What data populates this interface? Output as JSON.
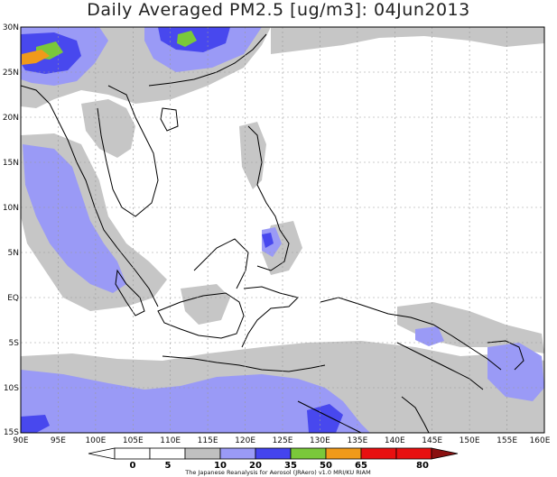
{
  "title": "Daily Averaged PM2.5 [ug/m3]: 04Jun2013",
  "credit": "The Japanese Reanalysis for Aerosol (JRAero) v1.0  MRI/KU RIAM",
  "map": {
    "lon_range": [
      "90E",
      "160E"
    ],
    "lat_range": [
      "15S",
      "30N"
    ],
    "grid": "dashed"
  },
  "lat_labels": [
    "30N",
    "25N",
    "20N",
    "15N",
    "10N",
    "5N",
    "EQ",
    "5S",
    "10S",
    "15S"
  ],
  "lon_labels": [
    "90E",
    "95E",
    "100E",
    "105E",
    "110E",
    "115E",
    "120E",
    "125E",
    "130E",
    "135E",
    "140E",
    "145E",
    "150E",
    "155E",
    "160E"
  ],
  "colorbar": {
    "levels": [
      "0",
      "5",
      "10",
      "20",
      "35",
      "50",
      "65",
      "80"
    ],
    "colors": [
      "#ffffff",
      "#ffffff",
      "#c0c0c0",
      "#9a9af6",
      "#4444ee",
      "#7ac83a",
      "#f09a1a",
      "#e81010",
      "#8a1010"
    ]
  }
}
